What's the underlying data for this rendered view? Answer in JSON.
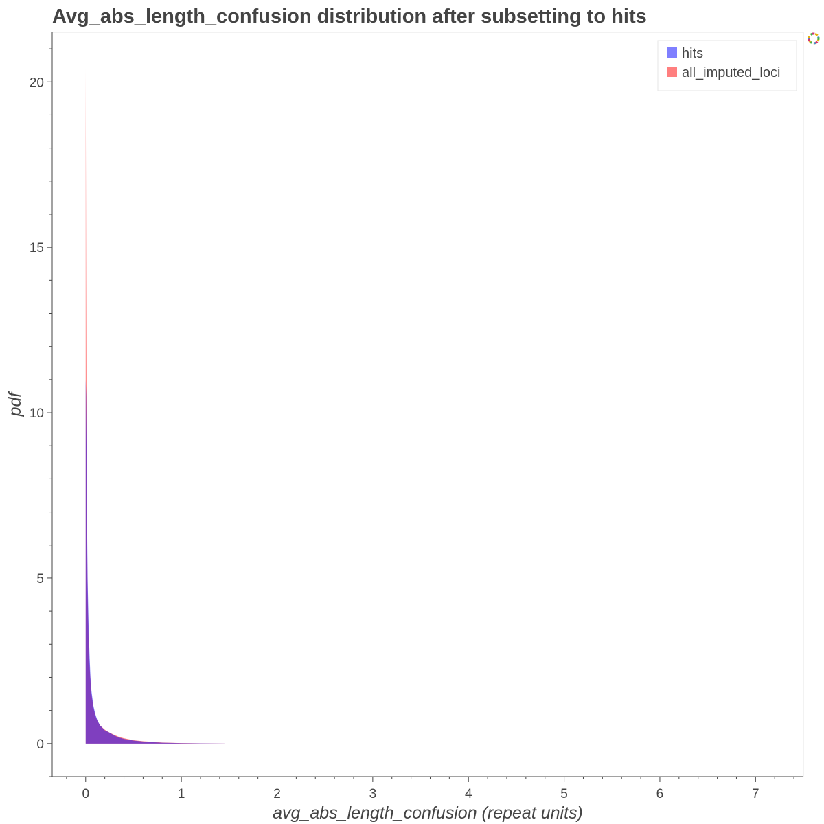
{
  "chart_data": {
    "type": "area",
    "title": "Avg_abs_length_confusion distribution after subsetting to hits",
    "xlabel": "avg_abs_length_confusion (repeat units)",
    "ylabel": "pdf",
    "xlim": [
      -0.35,
      7.5
    ],
    "ylim": [
      -1,
      21.5
    ],
    "x_ticks": [
      0,
      1,
      2,
      3,
      4,
      5,
      6,
      7
    ],
    "y_ticks": [
      0,
      5,
      10,
      15,
      20
    ],
    "grid": false,
    "legend_position": "top-right",
    "series": [
      {
        "name": "all_imputed_loci",
        "color": "#ff0000",
        "opacity": 0.5,
        "x": [
          0,
          0.005,
          0.01,
          0.015,
          0.02,
          0.03,
          0.04,
          0.05,
          0.06,
          0.08,
          0.1,
          0.12,
          0.15,
          0.2,
          0.25,
          0.3,
          0.35,
          0.4,
          0.5,
          0.6,
          0.7,
          0.8,
          1.0,
          1.2,
          1.45
        ],
        "y": [
          20.4,
          14.0,
          9.0,
          6.0,
          4.6,
          3.2,
          2.4,
          1.9,
          1.5,
          1.1,
          0.85,
          0.7,
          0.55,
          0.42,
          0.33,
          0.26,
          0.2,
          0.16,
          0.1,
          0.07,
          0.05,
          0.03,
          0.015,
          0.008,
          0.002
        ]
      },
      {
        "name": "hits",
        "color": "#0000ff",
        "opacity": 0.5,
        "x": [
          0,
          0.005,
          0.01,
          0.015,
          0.02,
          0.03,
          0.04,
          0.05,
          0.06,
          0.08,
          0.1,
          0.12,
          0.15,
          0.2,
          0.25,
          0.3,
          0.35,
          0.4,
          0.5,
          0.6,
          0.7,
          0.8,
          1.0,
          1.2,
          1.45
        ],
        "y": [
          11.0,
          10.5,
          8.5,
          6.5,
          5.0,
          3.6,
          2.7,
          2.0,
          1.6,
          1.15,
          0.9,
          0.72,
          0.55,
          0.4,
          0.33,
          0.24,
          0.18,
          0.14,
          0.09,
          0.06,
          0.04,
          0.025,
          0.012,
          0.006,
          0.002
        ]
      }
    ]
  },
  "toolbar": {
    "logo_icon": "bokeh-logo-icon"
  }
}
